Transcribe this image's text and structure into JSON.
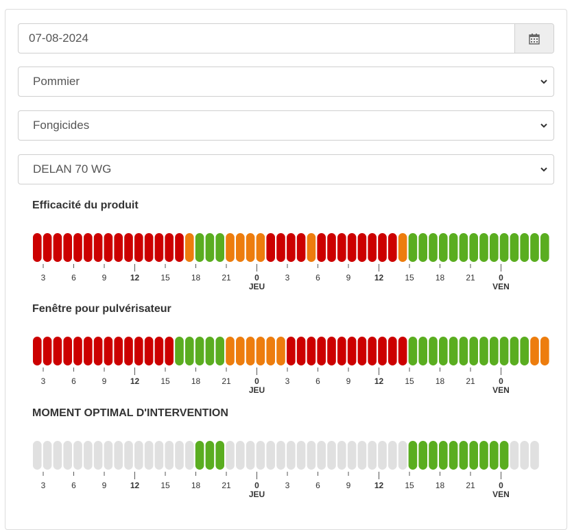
{
  "date_field": {
    "value": "07-08-2024",
    "icon": "calendar-icon"
  },
  "selects": [
    {
      "name": "crop-select",
      "value": "Pommier"
    },
    {
      "name": "category-select",
      "value": "Fongicides"
    },
    {
      "name": "product-select",
      "value": "DELAN 70 WG"
    }
  ],
  "colors": {
    "red": "#cc0000",
    "orange": "#ed7d0e",
    "green": "#5aad20",
    "gray": "#e0e0e0"
  },
  "axis": {
    "hour_labels": [
      "3",
      "6",
      "9",
      "12",
      "15",
      "18",
      "21",
      "0",
      "3",
      "6",
      "9",
      "12",
      "15",
      "18",
      "21",
      "0"
    ],
    "bold_labels": [
      "12",
      "0"
    ],
    "day_labels": [
      "JEU",
      "VEN"
    ]
  },
  "sections": [
    {
      "title": "Efficacité du produit",
      "slots": "RRRRRRRRRRRRRRROGGGOOOORRRRORRRRRRRROGGGGGGGGGGGGGG"
    },
    {
      "title": "Fenêtre pour pulvérisateur",
      "slots": "RRRRRRRRRRRRRRGGGGGOOOOOORRRRRRRRRRRRGGGGGGGGGGGGOO"
    },
    {
      "title": "MOMENT OPTIMAL D'INTERVENTION",
      "slots": "XXXXXXXXXXXXXXXXGGGXXXXXXXXXXXXXXXXXXGGGGGGGGGGXXX"
    }
  ]
}
